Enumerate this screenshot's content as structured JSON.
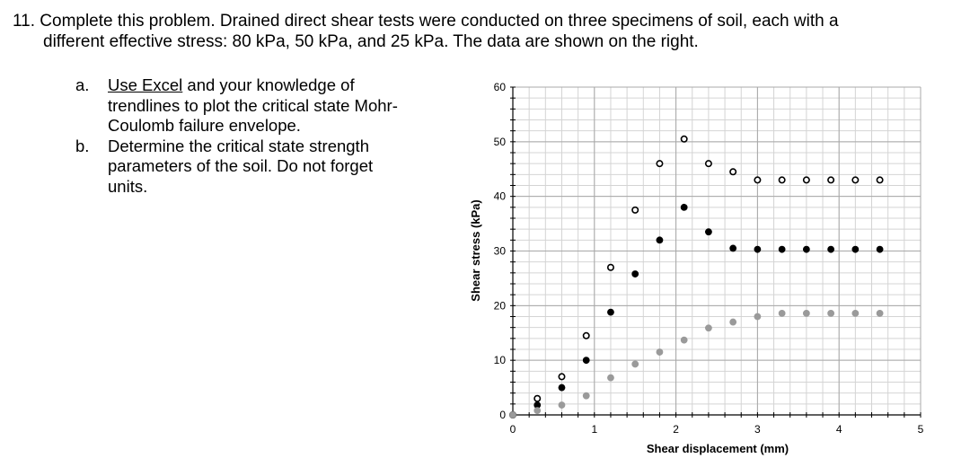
{
  "problem": {
    "line1": "11. Complete this problem. Drained direct shear tests were conducted on three specimens of soil, each with a",
    "line2": "different effective stress: 80 kPa, 50 kPa, and 25 kPa. The data are shown on the right."
  },
  "parts": [
    {
      "letter": "a.",
      "link": "Use Excel",
      "lines": [
        " and your knowledge of",
        "trendlines to plot the critical state Mohr-",
        "Coulomb failure envelope."
      ]
    },
    {
      "letter": "b.",
      "lines": [
        "Determine the critical state strength",
        "parameters of the soil. Do not forget",
        "units."
      ]
    }
  ],
  "chart_data": {
    "type": "scatter",
    "xlabel": "Shear displacement (mm)",
    "ylabel": "Shear stress (kPa)",
    "xlim": [
      0,
      5
    ],
    "ylim": [
      0,
      60
    ],
    "x_ticks": [
      0,
      1,
      2,
      3,
      4,
      5
    ],
    "y_ticks": [
      0,
      10,
      20,
      30,
      40,
      50,
      60
    ],
    "grid": true,
    "legend": "none",
    "series": [
      {
        "marker": "open-circle",
        "color": "#000000",
        "points": [
          [
            0,
            0
          ],
          [
            0.3,
            3
          ],
          [
            0.6,
            7
          ],
          [
            0.9,
            14.5
          ],
          [
            1.2,
            27
          ],
          [
            1.5,
            37.5
          ],
          [
            1.8,
            46
          ],
          [
            2.1,
            50.5
          ],
          [
            2.4,
            46
          ],
          [
            2.7,
            44.5
          ],
          [
            3.0,
            43
          ],
          [
            3.3,
            43
          ],
          [
            3.6,
            43
          ],
          [
            3.9,
            43
          ],
          [
            4.2,
            43
          ],
          [
            4.5,
            43
          ]
        ]
      },
      {
        "marker": "filled-circle",
        "color": "#000000",
        "points": [
          [
            0,
            0
          ],
          [
            0.3,
            1.8
          ],
          [
            0.6,
            5
          ],
          [
            0.9,
            10
          ],
          [
            1.2,
            18.8
          ],
          [
            1.5,
            25.8
          ],
          [
            1.8,
            32
          ],
          [
            2.1,
            38
          ],
          [
            2.4,
            33.5
          ],
          [
            2.7,
            30.5
          ],
          [
            3.0,
            30.3
          ],
          [
            3.3,
            30.3
          ],
          [
            3.6,
            30.3
          ],
          [
            3.9,
            30.3
          ],
          [
            4.2,
            30.3
          ],
          [
            4.5,
            30.3
          ]
        ]
      },
      {
        "marker": "filled-circle",
        "color": "#9a9a9a",
        "points": [
          [
            0,
            0
          ],
          [
            0.3,
            0.8
          ],
          [
            0.6,
            1.8
          ],
          [
            0.9,
            3.5
          ],
          [
            1.2,
            6.8
          ],
          [
            1.5,
            9.3
          ],
          [
            1.8,
            11.5
          ],
          [
            2.1,
            13.7
          ],
          [
            2.4,
            15.9
          ],
          [
            2.7,
            17
          ],
          [
            3.0,
            18
          ],
          [
            3.3,
            18.6
          ],
          [
            3.6,
            18.6
          ],
          [
            3.9,
            18.6
          ],
          [
            4.2,
            18.6
          ],
          [
            4.5,
            18.6
          ]
        ]
      }
    ]
  }
}
